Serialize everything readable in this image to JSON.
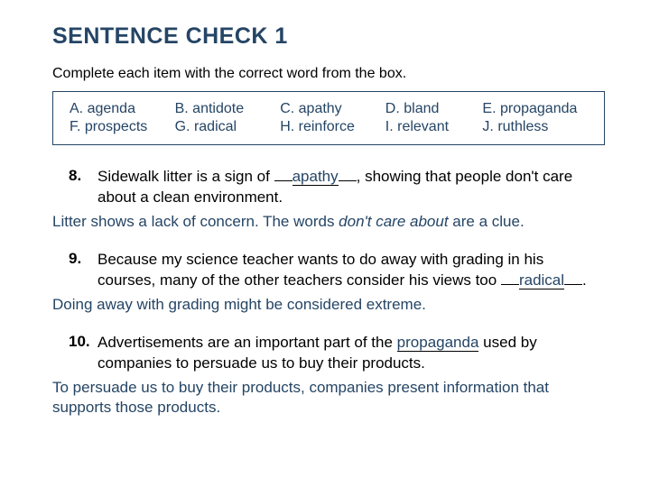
{
  "title": "SENTENCE CHECK 1",
  "instructions": "Complete each item with the correct word from the box.",
  "colors": {
    "heading": "#254565",
    "box_border": "#254565",
    "hint_text": "#254565",
    "body_text": "#000000",
    "background": "#ffffff"
  },
  "word_box": {
    "row1": [
      {
        "letter": "A.",
        "word": "agenda"
      },
      {
        "letter": "B.",
        "word": "antidote"
      },
      {
        "letter": "C.",
        "word": "apathy"
      },
      {
        "letter": "D.",
        "word": "bland"
      },
      {
        "letter": "E.",
        "word": "propaganda"
      }
    ],
    "row2": [
      {
        "letter": "F.",
        "word": "prospects"
      },
      {
        "letter": "G.",
        "word": "radical"
      },
      {
        "letter": "H.",
        "word": "reinforce"
      },
      {
        "letter": "I.",
        "word": "relevant"
      },
      {
        "letter": "J.",
        "word": "ruthless"
      }
    ]
  },
  "questions": {
    "q8": {
      "num": "8.",
      "text_before": "Sidewalk litter is a sign of ",
      "blank_left": "___",
      "answer": "apathy",
      "blank_right": "___",
      "text_after": ", showing that people don't care about a clean environment.",
      "hint_before": "Litter shows a lack of concern. The words ",
      "hint_italic": "don't care about",
      "hint_after": " are a clue."
    },
    "q9": {
      "num": "9.",
      "text_before": "Because my science teacher wants to do away with grading in his courses, many of the other teachers consider his views too ",
      "blank_left": "___",
      "answer": "radical",
      "blank_right": "___",
      "text_after": ".",
      "hint": "Doing away with grading might be considered extreme."
    },
    "q10": {
      "num": "10.",
      "text_before": "Advertisements are an important part of the ",
      "blank_left": "_",
      "answer": "propaganda",
      "blank_right": "_",
      "text_after": " used by companies to persuade us to buy their products.",
      "hint": "To persuade us to buy their products, companies present information that supports those products."
    }
  }
}
